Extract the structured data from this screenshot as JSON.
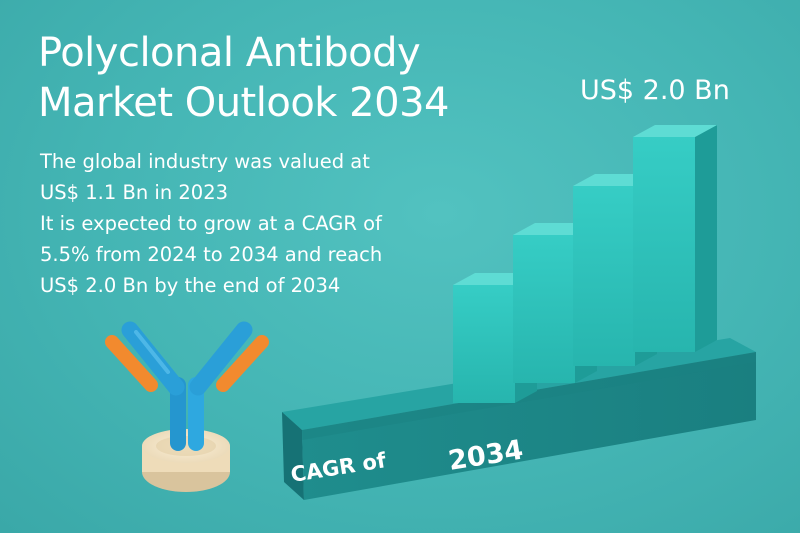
{
  "title": {
    "line1": "Polyclonal Antibody",
    "line2": "Market Outlook 2034"
  },
  "description": {
    "line1": "The global industry was valued at",
    "line2": "US$ 1.1 Bn in 2023",
    "line3": "It is expected to grow at a CAGR of",
    "line4": "5.5% from 2024 to 2034 and reach",
    "line5": "US$ 2.0 Bn by the end of 2034"
  },
  "chart": {
    "value_label": "US$ 2.0 Bn",
    "base_label_cagr": "CAGR of",
    "base_label_year": "2034",
    "bar_count": 4
  },
  "colors": {
    "background": "#46b7b6",
    "bar_front": "#2fc4bd",
    "bar_side": "#1e9c98",
    "bar_top": "#5edcd4",
    "platform": "#1d8c8c",
    "antibody_arm": "#2a9fd8",
    "antibody_tip": "#f28a2e",
    "pedestal": "#f0e2c4"
  },
  "icons": {
    "antibody": "antibody-icon"
  }
}
